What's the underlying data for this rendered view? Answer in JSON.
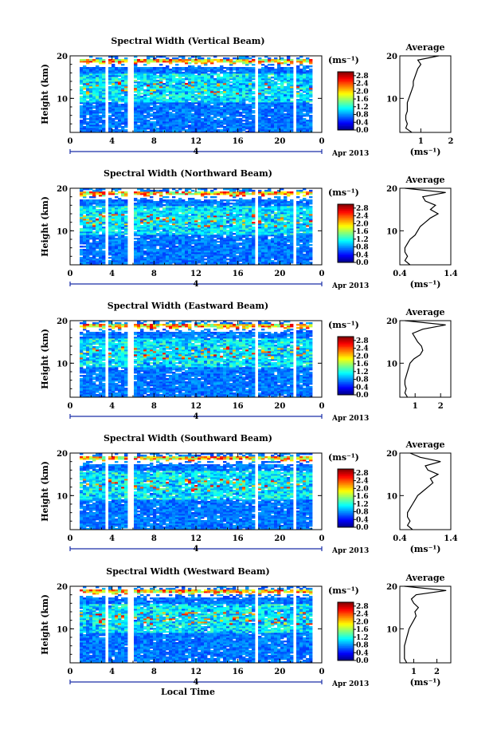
{
  "chart_data": [
    {
      "type": "heatmap",
      "title": "Spectral Width (Vertical Beam)",
      "ylabel": "Height (km)",
      "ylim": [
        2,
        20
      ],
      "yticks": [
        "10",
        "20"
      ],
      "xlim": [
        0,
        24
      ],
      "xticks": [
        "0",
        "4",
        "8",
        "12",
        "16",
        "20",
        "0"
      ],
      "date_marker": "4",
      "date_label": "Apr 2013",
      "colorbar": {
        "unit": "(ms⁻¹)",
        "ticks": [
          "0.0",
          "0.4",
          "0.8",
          "1.2",
          "1.6",
          "2.0",
          "2.4",
          "2.8"
        ],
        "range": [
          0,
          3.0
        ]
      },
      "gaps_hours": [
        [
          3.4,
          3.7
        ],
        [
          5.6,
          6.0
        ],
        [
          17.6,
          17.9
        ],
        [
          21.2,
          21.5
        ]
      ],
      "profile": {
        "title": "Average",
        "xlabel": "(ms⁻¹)",
        "xlim": [
          0.3,
          2.0
        ],
        "xticks": [
          "1",
          "2"
        ],
        "xtick_values": [
          1,
          2
        ],
        "height": [
          2,
          3,
          4,
          5,
          6,
          7,
          8,
          9,
          10,
          11,
          12,
          13,
          14,
          15,
          16,
          17,
          18,
          19,
          20
        ],
        "values": [
          0.7,
          0.5,
          0.55,
          0.5,
          0.5,
          0.55,
          0.55,
          0.55,
          0.6,
          0.65,
          0.7,
          0.75,
          0.75,
          0.8,
          0.85,
          0.9,
          1.0,
          0.9,
          1.6
        ]
      }
    },
    {
      "type": "heatmap",
      "title": "Spectral Width (Northward Beam)",
      "ylabel": "Height (km)",
      "ylim": [
        2,
        20
      ],
      "yticks": [
        "10",
        "20"
      ],
      "xlim": [
        0,
        24
      ],
      "xticks": [
        "0",
        "4",
        "8",
        "12",
        "16",
        "20",
        "0"
      ],
      "date_marker": "4",
      "date_label": "Apr 2013",
      "colorbar": {
        "unit": "(ms⁻¹)",
        "ticks": [
          "0.0",
          "0.4",
          "0.8",
          "1.2",
          "1.6",
          "2.0",
          "2.4",
          "2.8"
        ],
        "range": [
          0,
          3.0
        ]
      },
      "gaps_hours": [
        [
          3.4,
          3.7
        ],
        [
          5.6,
          6.0
        ],
        [
          17.6,
          17.9
        ],
        [
          21.2,
          21.5
        ]
      ],
      "profile": {
        "title": "Average",
        "xlabel": "(ms⁻¹)",
        "xlim": [
          0.4,
          1.4
        ],
        "xticks": [
          "0.4",
          "1.4"
        ],
        "xtick_values": [
          0.4,
          1.4
        ],
        "height": [
          2,
          3,
          4,
          5,
          6,
          7,
          8,
          9,
          10,
          11,
          12,
          13,
          14,
          15,
          16,
          17,
          18,
          19,
          20
        ],
        "values": [
          0.6,
          0.5,
          0.55,
          0.5,
          0.5,
          0.55,
          0.6,
          0.7,
          0.75,
          0.8,
          0.9,
          1.0,
          1.15,
          1.0,
          1.1,
          0.9,
          0.85,
          1.3,
          0.5
        ]
      }
    },
    {
      "type": "heatmap",
      "title": "Spectral Width (Eastward Beam)",
      "ylabel": "Height (km)",
      "ylim": [
        2,
        20
      ],
      "yticks": [
        "10",
        "20"
      ],
      "xlim": [
        0,
        24
      ],
      "xticks": [
        "0",
        "4",
        "8",
        "12",
        "16",
        "20",
        "0"
      ],
      "date_marker": "4",
      "date_label": "Apr 2013",
      "colorbar": {
        "unit": "(ms⁻¹)",
        "ticks": [
          "0.0",
          "0.4",
          "0.8",
          "1.2",
          "1.6",
          "2.0",
          "2.4",
          "2.8"
        ],
        "range": [
          0,
          3.0
        ]
      },
      "gaps_hours": [
        [
          3.4,
          3.7
        ],
        [
          5.6,
          6.0
        ],
        [
          17.6,
          17.9
        ],
        [
          21.2,
          21.5
        ]
      ],
      "profile": {
        "title": "Average",
        "xlabel": "",
        "xlim": [
          0.4,
          2.4
        ],
        "xticks": [
          "1",
          "2"
        ],
        "xtick_values": [
          1,
          2
        ],
        "height": [
          2,
          3,
          4,
          5,
          6,
          7,
          8,
          9,
          10,
          11,
          12,
          13,
          14,
          15,
          16,
          17,
          18,
          19,
          20
        ],
        "values": [
          0.7,
          0.6,
          0.65,
          0.6,
          0.6,
          0.65,
          0.7,
          0.75,
          0.8,
          0.95,
          1.2,
          1.3,
          1.25,
          1.1,
          1.0,
          0.9,
          1.3,
          2.2,
          0.6
        ]
      }
    },
    {
      "type": "heatmap",
      "title": "Spectral Width (Southward Beam)",
      "ylabel": "Height (km)",
      "ylim": [
        2,
        20
      ],
      "yticks": [
        "10",
        "20"
      ],
      "xlim": [
        0,
        24
      ],
      "xticks": [
        "0",
        "4",
        "8",
        "12",
        "16",
        "20",
        "0"
      ],
      "date_marker": "4",
      "date_label": "Apr 2013",
      "colorbar": {
        "unit": "(ms⁻¹)",
        "ticks": [
          "0.0",
          "0.4",
          "0.8",
          "1.2",
          "1.6",
          "2.0",
          "2.4",
          "2.8"
        ],
        "range": [
          0,
          3.0
        ]
      },
      "gaps_hours": [
        [
          3.4,
          3.7
        ],
        [
          5.6,
          6.0
        ],
        [
          17.6,
          17.9
        ],
        [
          21.2,
          21.5
        ]
      ],
      "profile": {
        "title": "Average",
        "xlabel": "(ms⁻¹)",
        "xlim": [
          0.4,
          1.4
        ],
        "xticks": [
          "0.4",
          "1.4"
        ],
        "xtick_values": [
          0.4,
          1.4
        ],
        "height": [
          2,
          3,
          4,
          5,
          6,
          7,
          8,
          9,
          10,
          11,
          12,
          13,
          14,
          15,
          16,
          17,
          18,
          19,
          20
        ],
        "values": [
          0.65,
          0.55,
          0.6,
          0.55,
          0.55,
          0.6,
          0.65,
          0.7,
          0.75,
          0.85,
          0.95,
          1.05,
          1.0,
          1.15,
          0.95,
          0.9,
          1.2,
          0.8,
          0.6
        ]
      }
    },
    {
      "type": "heatmap",
      "title": "Spectral Width (Westward Beam)",
      "ylabel": "Height (km)",
      "ylim": [
        2,
        20
      ],
      "yticks": [
        "10",
        "20"
      ],
      "xlim": [
        0,
        24
      ],
      "xticks": [
        "0",
        "4",
        "8",
        "12",
        "16",
        "20",
        "0"
      ],
      "date_marker": "4",
      "date_label": "Apr 2013",
      "xlabel": "Local Time",
      "colorbar": {
        "unit": "(ms⁻¹)",
        "ticks": [
          "0.0",
          "0.4",
          "0.8",
          "1.2",
          "1.6",
          "2.0",
          "2.4",
          "2.8"
        ],
        "range": [
          0,
          3.0
        ]
      },
      "gaps_hours": [
        [
          3.4,
          3.7
        ],
        [
          5.6,
          6.0
        ],
        [
          17.6,
          17.9
        ],
        [
          21.2,
          21.5
        ]
      ],
      "profile": {
        "title": "Average",
        "xlabel": "(ms⁻¹)",
        "xlim": [
          0.4,
          2.6
        ],
        "xticks": [
          "1",
          "2"
        ],
        "xtick_values": [
          1,
          2
        ],
        "height": [
          2,
          3,
          4,
          5,
          6,
          7,
          8,
          9,
          10,
          11,
          12,
          13,
          14,
          15,
          16,
          17,
          18,
          19,
          20
        ],
        "values": [
          0.7,
          0.6,
          0.6,
          0.6,
          0.6,
          0.65,
          0.7,
          0.75,
          0.8,
          0.9,
          1.0,
          1.1,
          1.05,
          1.2,
          1.0,
          0.9,
          1.1,
          2.4,
          0.6
        ]
      }
    }
  ]
}
